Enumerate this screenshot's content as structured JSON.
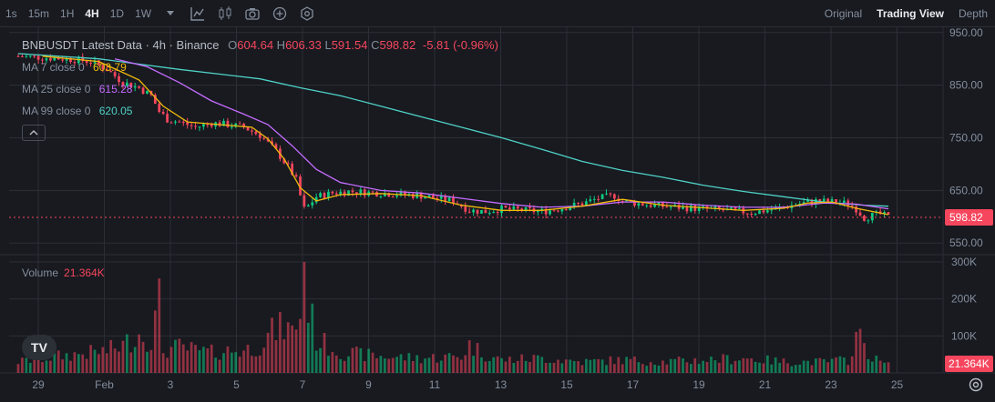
{
  "toolbar": {
    "timeframes": [
      "1s",
      "15m",
      "1H",
      "4H",
      "1D",
      "1W"
    ],
    "active_timeframe": "4H",
    "icons": [
      "chevron-down-icon",
      "indicator-icon",
      "candle-type-icon",
      "camera-icon",
      "plus-circle-icon",
      "settings-icon"
    ],
    "views": [
      "Original",
      "Trading View",
      "Depth"
    ],
    "active_view": "Trading View"
  },
  "legend": {
    "symbol": "BNBUSDT Latest Data · 4h · Binance",
    "open_label": "O",
    "open": "604.64",
    "high_label": "H",
    "high": "606.33",
    "low_label": "L",
    "low": "591.54",
    "close_label": "C",
    "close": "598.82",
    "change": "-5.81 (-0.96%)"
  },
  "moving_averages": [
    {
      "label": "MA 7 close 0",
      "value": "603.79",
      "color": "#f0b90b"
    },
    {
      "label": "MA 25 close 0",
      "value": "615.28",
      "color": "#c66cff"
    },
    {
      "label": "MA 99 close 0",
      "value": "620.05",
      "color": "#4fd1c5"
    }
  ],
  "volume_legend": {
    "label": "Volume",
    "value": "21.364K"
  },
  "logo_text": "TV",
  "colors": {
    "up": "#0ecb81",
    "down": "#f6465d",
    "bg": "#181a20",
    "grid": "#2b2f36"
  },
  "chart_data": {
    "type": "candlestick",
    "price_axis": {
      "ticks": [
        550,
        650,
        750,
        850,
        950
      ],
      "tick_labels": [
        "550.00",
        "650.00",
        "750.00",
        "850.00",
        "950.00"
      ],
      "range": [
        540,
        960
      ]
    },
    "volume_axis": {
      "ticks": [
        100000,
        200000,
        300000
      ],
      "tick_labels": [
        "100K",
        "200K",
        "300K"
      ],
      "range": [
        0,
        300000
      ]
    },
    "x_axis": {
      "tick_labels": [
        "29",
        "Feb",
        "3",
        "5",
        "7",
        "9",
        "11",
        "13",
        "15",
        "17",
        "19",
        "21",
        "23",
        "25"
      ]
    },
    "last_price": "598.82",
    "last_volume": "21.364K",
    "price_path": [
      [
        0,
        905
      ],
      [
        12,
        900
      ],
      [
        18,
        895
      ],
      [
        22,
        880
      ],
      [
        26,
        855
      ],
      [
        30,
        845
      ],
      [
        33,
        830
      ],
      [
        35,
        800
      ],
      [
        37,
        785
      ],
      [
        40,
        780
      ],
      [
        44,
        770
      ],
      [
        48,
        778
      ],
      [
        52,
        775
      ],
      [
        56,
        770
      ],
      [
        60,
        755
      ],
      [
        64,
        725
      ],
      [
        67,
        695
      ],
      [
        69,
        670
      ],
      [
        70,
        640
      ],
      [
        71,
        615
      ],
      [
        72,
        620
      ],
      [
        74,
        638
      ],
      [
        78,
        645
      ],
      [
        82,
        648
      ],
      [
        90,
        645
      ],
      [
        100,
        640
      ],
      [
        108,
        630
      ],
      [
        112,
        612
      ],
      [
        116,
        610
      ],
      [
        120,
        615
      ],
      [
        126,
        612
      ],
      [
        130,
        610
      ],
      [
        134,
        615
      ],
      [
        140,
        625
      ],
      [
        144,
        635
      ],
      [
        148,
        640
      ],
      [
        150,
        630
      ],
      [
        154,
        625
      ],
      [
        160,
        620
      ],
      [
        170,
        615
      ],
      [
        176,
        612
      ],
      [
        182,
        608
      ],
      [
        188,
        615
      ],
      [
        194,
        625
      ],
      [
        198,
        630
      ],
      [
        202,
        628
      ],
      [
        206,
        625
      ],
      [
        208,
        615
      ],
      [
        210,
        598
      ],
      [
        212,
        602
      ],
      [
        214,
        605
      ],
      [
        216,
        599
      ]
    ],
    "volume_path": [
      [
        0,
        30000
      ],
      [
        10,
        45000
      ],
      [
        18,
        55000
      ],
      [
        22,
        60000
      ],
      [
        26,
        75000
      ],
      [
        30,
        105000
      ],
      [
        33,
        90000
      ],
      [
        35,
        190000
      ],
      [
        36,
        60000
      ],
      [
        40,
        70000
      ],
      [
        44,
        60000
      ],
      [
        48,
        55000
      ],
      [
        52,
        60000
      ],
      [
        56,
        60000
      ],
      [
        60,
        75000
      ],
      [
        63,
        110000
      ],
      [
        66,
        125000
      ],
      [
        68,
        110000
      ],
      [
        70,
        160000
      ],
      [
        71,
        300000
      ],
      [
        72,
        190000
      ],
      [
        74,
        90000
      ],
      [
        80,
        55000
      ],
      [
        90,
        45000
      ],
      [
        100,
        40000
      ],
      [
        110,
        45000
      ],
      [
        112,
        75000
      ],
      [
        116,
        50000
      ],
      [
        120,
        35000
      ],
      [
        130,
        40000
      ],
      [
        140,
        30000
      ],
      [
        150,
        35000
      ],
      [
        160,
        30000
      ],
      [
        170,
        35000
      ],
      [
        180,
        40000
      ],
      [
        190,
        30000
      ],
      [
        200,
        30000
      ],
      [
        206,
        35000
      ],
      [
        208,
        100000
      ],
      [
        210,
        80000
      ],
      [
        212,
        40000
      ],
      [
        216,
        21364
      ]
    ],
    "ma_paths": {
      "ma7": [
        [
          6,
          905
        ],
        [
          20,
          895
        ],
        [
          30,
          860
        ],
        [
          36,
          810
        ],
        [
          42,
          780
        ],
        [
          50,
          775
        ],
        [
          58,
          770
        ],
        [
          62,
          748
        ],
        [
          66,
          710
        ],
        [
          70,
          655
        ],
        [
          74,
          630
        ],
        [
          80,
          642
        ],
        [
          90,
          644
        ],
        [
          100,
          640
        ],
        [
          110,
          622
        ],
        [
          120,
          612
        ],
        [
          130,
          612
        ],
        [
          140,
          620
        ],
        [
          150,
          633
        ],
        [
          160,
          622
        ],
        [
          170,
          617
        ],
        [
          180,
          612
        ],
        [
          190,
          616
        ],
        [
          196,
          626
        ],
        [
          202,
          628
        ],
        [
          208,
          616
        ],
        [
          216,
          604
        ]
      ],
      "ma25": [
        [
          24,
          900
        ],
        [
          32,
          885
        ],
        [
          40,
          855
        ],
        [
          48,
          820
        ],
        [
          56,
          795
        ],
        [
          62,
          775
        ],
        [
          68,
          735
        ],
        [
          74,
          690
        ],
        [
          80,
          665
        ],
        [
          90,
          650
        ],
        [
          100,
          645
        ],
        [
          110,
          635
        ],
        [
          120,
          625
        ],
        [
          130,
          618
        ],
        [
          140,
          620
        ],
        [
          150,
          628
        ],
        [
          160,
          628
        ],
        [
          170,
          622
        ],
        [
          180,
          618
        ],
        [
          190,
          618
        ],
        [
          200,
          626
        ],
        [
          208,
          624
        ],
        [
          216,
          615
        ]
      ],
      "ma99": [
        [
          0,
          910
        ],
        [
          20,
          900
        ],
        [
          40,
          880
        ],
        [
          60,
          862
        ],
        [
          70,
          845
        ],
        [
          80,
          830
        ],
        [
          90,
          810
        ],
        [
          100,
          790
        ],
        [
          110,
          770
        ],
        [
          120,
          750
        ],
        [
          130,
          728
        ],
        [
          140,
          705
        ],
        [
          150,
          688
        ],
        [
          160,
          675
        ],
        [
          170,
          660
        ],
        [
          180,
          648
        ],
        [
          190,
          638
        ],
        [
          200,
          628
        ],
        [
          210,
          622
        ],
        [
          216,
          620
        ]
      ]
    }
  }
}
